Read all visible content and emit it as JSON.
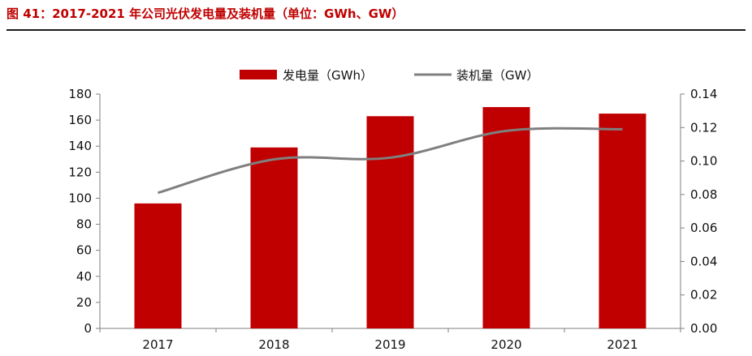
{
  "figure_title": "图 41：2017-2021 年公司光伏发电量及装机量（单位：GWh、GW）",
  "colors": {
    "title": "#c00000",
    "bar": "#c00000",
    "line": "#7f7f7f",
    "axis": "#7f7f7f"
  },
  "chart_data": {
    "type": "bar",
    "categories": [
      "2017",
      "2018",
      "2019",
      "2020",
      "2021"
    ],
    "series": [
      {
        "name": "发电量（GWh）",
        "kind": "bar",
        "axis": "left",
        "values": [
          96,
          139,
          163,
          170,
          165
        ]
      },
      {
        "name": "装机量（GW）",
        "kind": "line",
        "axis": "right",
        "smooth": true,
        "values": [
          0.081,
          0.101,
          0.102,
          0.118,
          0.119
        ]
      }
    ],
    "y_left": {
      "min": 0,
      "max": 180,
      "ticks": [
        "0",
        "20",
        "40",
        "60",
        "80",
        "100",
        "120",
        "140",
        "160",
        "180"
      ]
    },
    "y_right": {
      "min": 0,
      "max": 0.14,
      "ticks": [
        "0.00",
        "0.02",
        "0.04",
        "0.06",
        "0.08",
        "0.10",
        "0.12",
        "0.14"
      ]
    },
    "grid": false,
    "legend_position": "top-center"
  }
}
